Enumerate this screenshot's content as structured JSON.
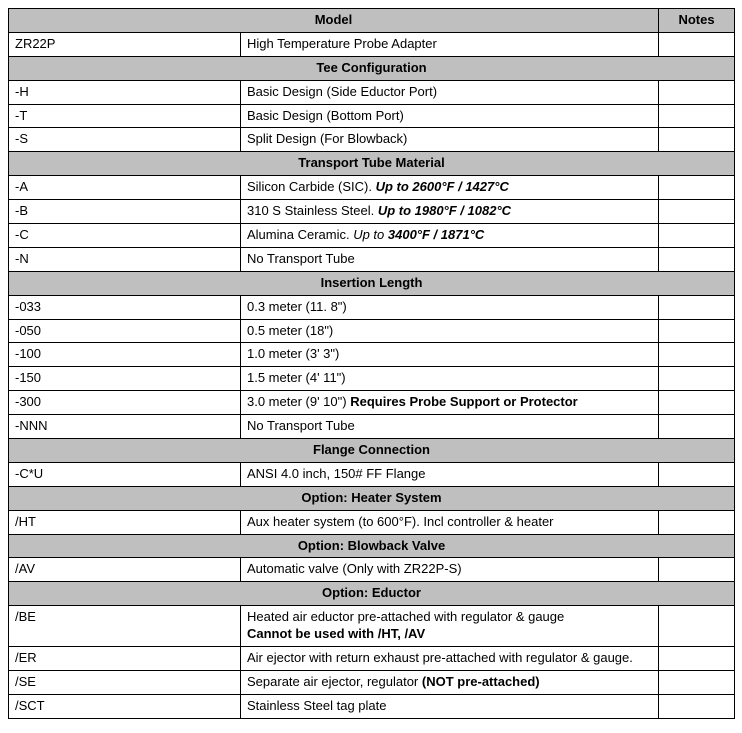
{
  "colors": {
    "header_bg": "#bfbfbf",
    "border": "#000000",
    "text": "#000000",
    "bg": "#ffffff"
  },
  "typography": {
    "font_family": "Arial",
    "font_size_pt": 10
  },
  "columns": {
    "model": "Model",
    "notes": "Notes"
  },
  "topRow": {
    "code": "ZR22P",
    "desc": "High Temperature Probe Adapter",
    "notes": ""
  },
  "sections": [
    {
      "title": "Tee Configuration",
      "rows": [
        {
          "code": "-H",
          "desc": "Basic Design (Side Eductor Port)",
          "notes": ""
        },
        {
          "code": "-T",
          "desc": "Basic Design (Bottom Port)",
          "notes": ""
        },
        {
          "code": "-S",
          "desc": "Split Design (For Blowback)",
          "notes": ""
        }
      ]
    },
    {
      "title": "Transport Tube Material",
      "rows": [
        {
          "code": "-A",
          "desc_pre": "Silicon Carbide (SIC). ",
          "desc_bi": "Up to 2600°F / 1427°C",
          "notes": ""
        },
        {
          "code": "-B",
          "desc_pre": "310 S Stainless Steel. ",
          "desc_bi": "Up to 1980°F / 1082°C",
          "notes": ""
        },
        {
          "code": "-C",
          "desc_pre": "Alumina Ceramic. ",
          "desc_i_pre": "Up to ",
          "desc_bi": "3400°F  / 1871°C",
          "notes": ""
        },
        {
          "code": "-N",
          "desc": "No Transport Tube",
          "notes": ""
        }
      ]
    },
    {
      "title": "Insertion Length",
      "rows": [
        {
          "code": "-033",
          "desc": "0.3 meter (11. 8\")",
          "notes": ""
        },
        {
          "code": "-050",
          "desc": "0.5 meter (18\")",
          "notes": ""
        },
        {
          "code": "-100",
          "desc": "1.0 meter (3' 3\")",
          "notes": ""
        },
        {
          "code": "-150",
          "desc": "1.5 meter (4' 11\")",
          "notes": ""
        },
        {
          "code": "-300",
          "desc_pre": "3.0 meter (9' 10\") ",
          "desc_b": "Requires Probe Support or Protector",
          "notes": ""
        },
        {
          "code": "-NNN",
          "desc": "No Transport Tube",
          "notes": ""
        }
      ]
    },
    {
      "title": "Flange Connection",
      "rows": [
        {
          "code": "-C*U",
          "desc": "ANSI 4.0 inch, 150# FF Flange",
          "notes": ""
        }
      ]
    },
    {
      "title": "Option: Heater System",
      "rows": [
        {
          "code": "/HT",
          "desc": "Aux heater system (to 600°F). Incl controller & heater",
          "notes": ""
        }
      ]
    },
    {
      "title": "Option: Blowback Valve",
      "rows": [
        {
          "code": "/AV",
          "desc": "Automatic valve (Only with ZR22P-S)",
          "notes": ""
        }
      ]
    },
    {
      "title": "Option: Eductor",
      "rows": [
        {
          "code": "/BE",
          "desc_pre": "Heated air eductor pre-attached with regulator & gauge",
          "desc_b_block": "Cannot be used with /HT, /AV",
          "notes": ""
        },
        {
          "code": "/ER",
          "desc": "Air ejector with return exhaust pre-attached with regulator & gauge.",
          "notes": ""
        },
        {
          "code": "/SE",
          "desc_pre": "Separate air ejector, regulator ",
          "desc_b": "(NOT pre-attached)",
          "notes": ""
        },
        {
          "code": "/SCT",
          "desc": "Stainless Steel tag plate",
          "notes": ""
        }
      ]
    }
  ]
}
